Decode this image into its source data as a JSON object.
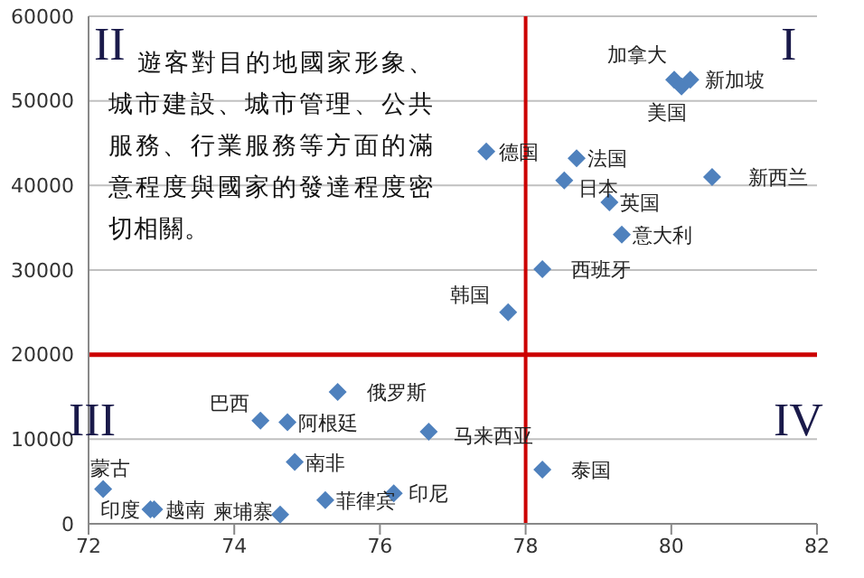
{
  "chart_data": {
    "type": "scatter",
    "x": [
      80.04,
      80.14,
      80.26,
      77.46,
      78.7,
      78.53,
      80.56,
      79.15,
      79.32,
      78.23,
      77.76,
      75.42,
      74.36,
      74.73,
      76.67,
      74.83,
      78.23,
      76.19,
      75.25,
      74.63,
      72.2,
      72.85,
      72.9
    ],
    "values": [
      52500,
      51700,
      52500,
      44000,
      43200,
      40600,
      41000,
      38000,
      34200,
      30100,
      25000,
      15600,
      12200,
      12000,
      10900,
      7300,
      6400,
      3600,
      2800,
      1100,
      4100,
      1700,
      1700
    ],
    "value_labels": [
      "加拿大",
      "美国",
      "新加坡",
      "德国",
      "法国",
      "日本",
      "新西兰",
      "英国",
      "意大利",
      "西班牙",
      "韩国",
      "俄罗斯",
      "巴西",
      "阿根廷",
      "马来西亚",
      "南非",
      "泰国",
      "印尼",
      "菲律宾",
      "柬埔寨",
      "蒙古",
      "印度",
      "越南"
    ],
    "color": "#4f81bd",
    "marker": "diamond",
    "xlim": [
      72,
      82
    ],
    "xticks": [
      72,
      74,
      76,
      78,
      80,
      82
    ],
    "ylim": [
      0,
      60000
    ],
    "yticks": [
      0,
      10000,
      20000,
      30000,
      40000,
      50000,
      60000
    ],
    "grid": "y",
    "ref_lines": [
      {
        "axis": "x",
        "value": 78,
        "color": "#cc0000"
      },
      {
        "axis": "y",
        "value": 20000,
        "color": "#cc0000"
      }
    ],
    "annotations": [
      "II",
      "I",
      "III",
      "IV",
      "遊客對目的地國家形象、城市建設、城市管理、公共服務、行業服務等方面的滿意程度與國家的發達程度密切相關。"
    ]
  }
}
